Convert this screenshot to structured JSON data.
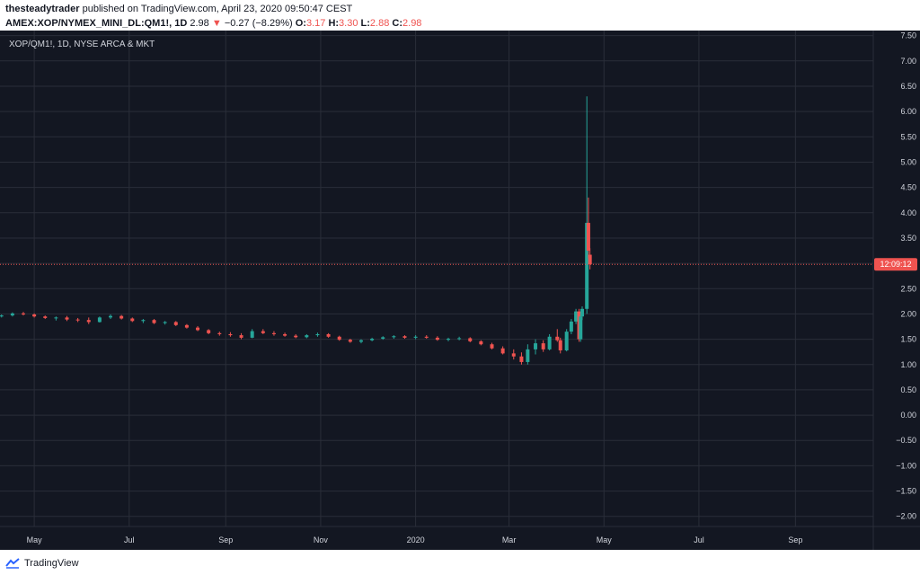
{
  "header": {
    "user": "thesteadytrader",
    "published_text": "published on TradingView.com, April 23, 2020 09:50:47 CEST",
    "symbol": "AMEX:XOP/NYMEX_MINI_DL:QM1!, 1D",
    "last": "2.98",
    "change_arrow": "▼",
    "change": "−0.27 (−8.29%)",
    "o_label": "O:",
    "o_value": "3.17",
    "h_label": "H:",
    "h_value": "3.30",
    "l_label": "L:",
    "l_value": "2.88",
    "c_label": "C:",
    "c_value": "2.98"
  },
  "chart_label": "XOP/QM1!, 1D, NYSE ARCA & MKT",
  "price_tag": "12:09:12",
  "footer": {
    "brand": "TradingView"
  },
  "colors": {
    "background": "#131722",
    "grid": "#2a2e39",
    "up": "#26a69a",
    "down": "#ef5350",
    "text": "#d1d4dc",
    "price_line": "#ef5350"
  },
  "chart_data": {
    "type": "candlestick",
    "title": "XOP/QM1!, 1D, NYSE ARCA & MKT",
    "ylim": [
      -2.2,
      7.6
    ],
    "y_ticks": [
      "7.50",
      "7.00",
      "6.50",
      "6.00",
      "5.50",
      "5.00",
      "4.50",
      "4.00",
      "3.50",
      "3.00",
      "2.50",
      "2.00",
      "1.50",
      "1.00",
      "0.50",
      "0.00",
      "−0.50",
      "−1.00",
      "−1.50",
      "−2.00"
    ],
    "y_tick_values": [
      7.5,
      7.0,
      6.5,
      6.0,
      5.5,
      5.0,
      4.5,
      4.0,
      3.5,
      3.0,
      2.5,
      2.0,
      1.5,
      1.0,
      0.5,
      0.0,
      -0.5,
      -1.0,
      -1.5,
      -2.0
    ],
    "x_ticks": [
      "May",
      "Jul",
      "Sep",
      "Nov",
      "2020",
      "Mar",
      "May",
      "Jul",
      "Sep"
    ],
    "x_tick_dates": [
      "2019-05-01",
      "2019-07-01",
      "2019-09-01",
      "2019-11-01",
      "2020-01-01",
      "2020-03-01",
      "2020-05-01",
      "2020-07-01",
      "2020-09-01"
    ],
    "x_range": [
      "2019-04-09",
      "2020-10-21"
    ],
    "current_price": 2.98,
    "ohlc": [
      [
        "2019-04-10",
        1.95,
        1.99,
        1.93,
        1.97
      ],
      [
        "2019-04-17",
        1.97,
        2.03,
        1.95,
        2.01
      ],
      [
        "2019-04-24",
        2.01,
        2.04,
        1.97,
        1.99
      ],
      [
        "2019-05-01",
        1.99,
        2.01,
        1.93,
        1.95
      ],
      [
        "2019-05-08",
        1.95,
        1.97,
        1.9,
        1.92
      ],
      [
        "2019-05-15",
        1.92,
        1.95,
        1.87,
        1.93
      ],
      [
        "2019-05-22",
        1.93,
        1.96,
        1.86,
        1.89
      ],
      [
        "2019-05-29",
        1.89,
        1.92,
        1.84,
        1.88
      ],
      [
        "2019-06-05",
        1.88,
        1.93,
        1.8,
        1.84
      ],
      [
        "2019-06-12",
        1.84,
        1.95,
        1.83,
        1.93
      ],
      [
        "2019-06-19",
        1.93,
        1.99,
        1.9,
        1.96
      ],
      [
        "2019-06-26",
        1.96,
        1.98,
        1.89,
        1.91
      ],
      [
        "2019-07-03",
        1.91,
        1.93,
        1.84,
        1.86
      ],
      [
        "2019-07-10",
        1.86,
        1.9,
        1.82,
        1.88
      ],
      [
        "2019-07-17",
        1.88,
        1.9,
        1.8,
        1.82
      ],
      [
        "2019-07-24",
        1.82,
        1.86,
        1.79,
        1.84
      ],
      [
        "2019-07-31",
        1.84,
        1.86,
        1.76,
        1.78
      ],
      [
        "2019-08-07",
        1.78,
        1.8,
        1.71,
        1.73
      ],
      [
        "2019-08-14",
        1.73,
        1.76,
        1.66,
        1.68
      ],
      [
        "2019-08-21",
        1.68,
        1.7,
        1.6,
        1.62
      ],
      [
        "2019-08-28",
        1.62,
        1.65,
        1.57,
        1.6
      ],
      [
        "2019-09-04",
        1.6,
        1.64,
        1.55,
        1.58
      ],
      [
        "2019-09-11",
        1.58,
        1.62,
        1.5,
        1.53
      ],
      [
        "2019-09-18",
        1.53,
        1.7,
        1.52,
        1.66
      ],
      [
        "2019-09-25",
        1.66,
        1.7,
        1.6,
        1.62
      ],
      [
        "2019-10-02",
        1.62,
        1.66,
        1.57,
        1.6
      ],
      [
        "2019-10-09",
        1.6,
        1.63,
        1.55,
        1.57
      ],
      [
        "2019-10-16",
        1.57,
        1.6,
        1.52,
        1.54
      ],
      [
        "2019-10-23",
        1.54,
        1.6,
        1.52,
        1.58
      ],
      [
        "2019-10-30",
        1.58,
        1.63,
        1.55,
        1.6
      ],
      [
        "2019-11-06",
        1.6,
        1.62,
        1.53,
        1.55
      ],
      [
        "2019-11-13",
        1.55,
        1.57,
        1.47,
        1.49
      ],
      [
        "2019-11-20",
        1.49,
        1.51,
        1.43,
        1.45
      ],
      [
        "2019-11-27",
        1.45,
        1.5,
        1.42,
        1.48
      ],
      [
        "2019-12-04",
        1.48,
        1.53,
        1.46,
        1.51
      ],
      [
        "2019-12-11",
        1.51,
        1.56,
        1.49,
        1.54
      ],
      [
        "2019-12-18",
        1.54,
        1.58,
        1.51,
        1.56
      ],
      [
        "2019-12-25",
        1.56,
        1.58,
        1.51,
        1.53
      ],
      [
        "2020-01-01",
        1.53,
        1.58,
        1.5,
        1.55
      ],
      [
        "2020-01-08",
        1.55,
        1.58,
        1.51,
        1.53
      ],
      [
        "2020-01-15",
        1.53,
        1.56,
        1.47,
        1.49
      ],
      [
        "2020-01-22",
        1.49,
        1.53,
        1.46,
        1.51
      ],
      [
        "2020-01-29",
        1.51,
        1.55,
        1.48,
        1.52
      ],
      [
        "2020-02-05",
        1.52,
        1.54,
        1.44,
        1.46
      ],
      [
        "2020-02-12",
        1.46,
        1.48,
        1.38,
        1.4
      ],
      [
        "2020-02-19",
        1.4,
        1.43,
        1.3,
        1.32
      ],
      [
        "2020-02-26",
        1.32,
        1.36,
        1.2,
        1.22
      ],
      [
        "2020-03-04",
        1.22,
        1.3,
        1.1,
        1.16
      ],
      [
        "2020-03-09",
        1.16,
        1.24,
        1.0,
        1.05
      ],
      [
        "2020-03-13",
        1.05,
        1.4,
        1.0,
        1.3
      ],
      [
        "2020-03-18",
        1.3,
        1.5,
        1.2,
        1.42
      ],
      [
        "2020-03-23",
        1.42,
        1.48,
        1.25,
        1.3
      ],
      [
        "2020-03-27",
        1.3,
        1.6,
        1.28,
        1.55
      ],
      [
        "2020-04-01",
        1.55,
        1.7,
        1.45,
        1.48
      ],
      [
        "2020-04-03",
        1.48,
        1.53,
        1.22,
        1.28
      ],
      [
        "2020-04-07",
        1.28,
        1.7,
        1.26,
        1.65
      ],
      [
        "2020-04-10",
        1.65,
        1.9,
        1.6,
        1.85
      ],
      [
        "2020-04-13",
        1.85,
        2.1,
        1.8,
        2.05
      ],
      [
        "2020-04-15",
        2.05,
        2.1,
        1.45,
        1.5
      ],
      [
        "2020-04-16",
        1.5,
        2.0,
        1.45,
        1.95
      ],
      [
        "2020-04-17",
        1.95,
        2.15,
        1.88,
        2.1
      ],
      [
        "2020-04-20",
        2.1,
        6.3,
        2.0,
        3.8
      ],
      [
        "2020-04-21",
        3.8,
        4.3,
        3.1,
        3.25
      ],
      [
        "2020-04-22",
        3.17,
        3.3,
        2.88,
        2.98
      ]
    ]
  }
}
